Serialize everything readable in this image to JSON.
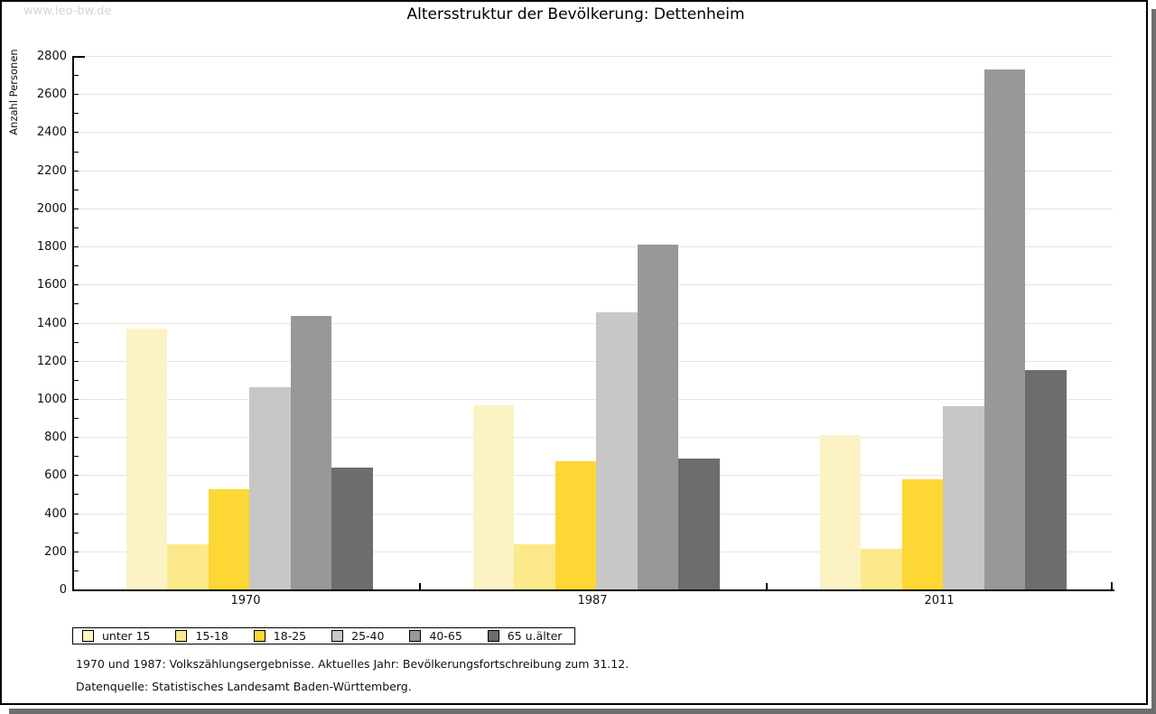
{
  "watermark": "www.leo-bw.de",
  "footer": {
    "line1": "1970 und 1987: Volkszählungsergebnisse. Aktuelles Jahr: Bevölkerungsfortschreibung zum 31.12.",
    "line2": "Datenquelle: Statistisches Landesamt Baden-Württemberg."
  },
  "chart_data": {
    "type": "bar",
    "title": "Altersstruktur der Bevölkerung: Dettenheim",
    "xlabel": "",
    "ylabel": "Anzahl Personen",
    "categories": [
      "1970",
      "1987",
      "2011"
    ],
    "series": [
      {
        "name": "unter 15",
        "color": "#FBF3C4",
        "values": [
          1370,
          965,
          810
        ]
      },
      {
        "name": "15-18",
        "color": "#FCE98B",
        "values": [
          235,
          235,
          215
        ]
      },
      {
        "name": "18-25",
        "color": "#FDD733",
        "values": [
          525,
          675,
          580
        ]
      },
      {
        "name": "25-40",
        "color": "#C7C7C7",
        "values": [
          1060,
          1455,
          960
        ]
      },
      {
        "name": "40-65",
        "color": "#989898",
        "values": [
          1435,
          1810,
          2730
        ]
      },
      {
        "name": "65 u.älter",
        "color": "#6D6D6D",
        "values": [
          640,
          685,
          1150
        ]
      }
    ],
    "ylim": [
      0,
      2800
    ],
    "ytick_step": 200,
    "yminor_step": 100,
    "grid": "horizontal",
    "legend_position": "bottom-left",
    "axis_color": "#000000",
    "grid_color": "#e5e5e5"
  }
}
